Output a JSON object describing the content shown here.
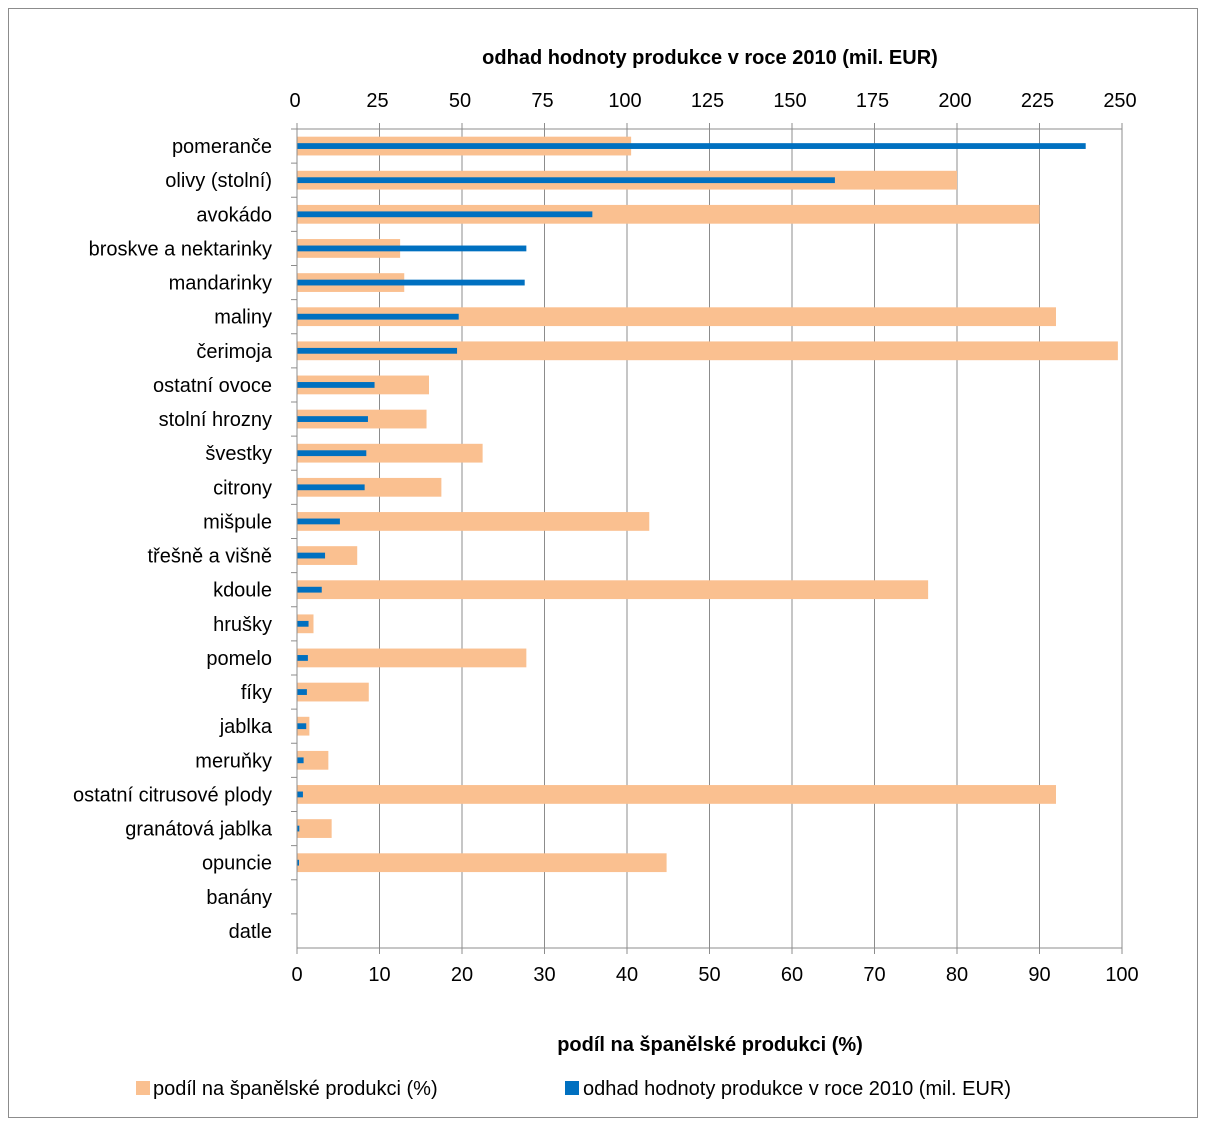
{
  "chart_data": {
    "type": "bar",
    "orientation": "horizontal",
    "categories": [
      "pomeranče",
      "olivy (stolní)",
      "avokádo",
      "broskve a nektarinky",
      "mandarinky",
      "maliny",
      "čerimoja",
      "ostatní ovoce",
      "stolní hrozny",
      "švestky",
      "citrony",
      "mišpule",
      "třešně a višně",
      "kdoule",
      "hrušky",
      "pomelo",
      "fíky",
      "jablka",
      "meruňky",
      "ostatní citrusové plody",
      "granátová jablka",
      "opuncie",
      "banány",
      "datle"
    ],
    "series": [
      {
        "name": "podíl na španělské produkci (%)",
        "axis": "bottom",
        "color": "#FAC090",
        "values": [
          40.5,
          80,
          90,
          12.5,
          13,
          92,
          99.5,
          16,
          15.7,
          22.5,
          17.5,
          42.7,
          7.3,
          76.5,
          2,
          27.8,
          8.7,
          1.5,
          3.8,
          92,
          4.2,
          44.8,
          0,
          0
        ]
      },
      {
        "name": "odhad hodnoty produkce v roce 2010 (mil. EUR)",
        "axis": "top",
        "color": "#0070C0",
        "values": [
          239,
          163,
          89.5,
          69.5,
          69,
          49,
          48.5,
          23.5,
          21.5,
          21,
          20.5,
          13,
          8.5,
          7.5,
          3.5,
          3.3,
          3,
          2.8,
          2,
          1.8,
          0.7,
          0.5,
          0,
          0
        ]
      }
    ],
    "x_bottom": {
      "label": "podíl na španělské produkci (%)",
      "range": [
        0,
        100
      ],
      "ticks": [
        "0",
        "10",
        "20",
        "30",
        "40",
        "50",
        "60",
        "70",
        "80",
        "90",
        "100"
      ]
    },
    "x_top": {
      "label": "odhad hodnoty produkce v roce 2010 (mil. EUR)",
      "range": [
        0,
        250
      ],
      "ticks": [
        "0",
        "25",
        "50",
        "75",
        "100",
        "125",
        "150",
        "175",
        "200",
        "225",
        "250"
      ]
    },
    "grid": "vertical",
    "legend": "bottom"
  }
}
